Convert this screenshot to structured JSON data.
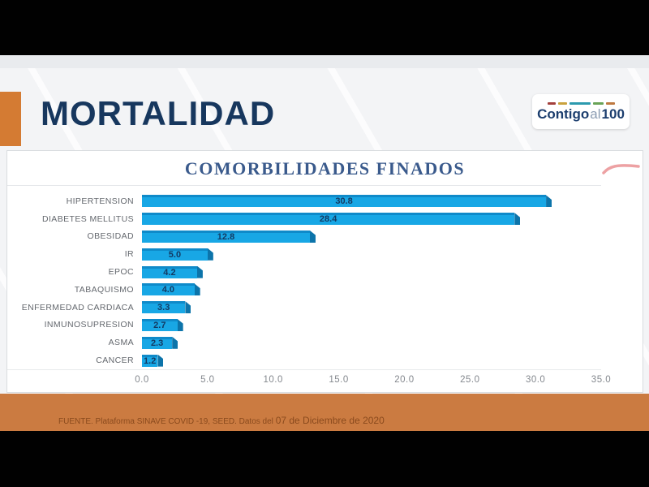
{
  "header": {
    "title": "MORTALIDAD",
    "logo": {
      "part1": "Contigo",
      "part2": "al",
      "part3": "100"
    }
  },
  "chart_data": {
    "type": "bar",
    "orientation": "horizontal",
    "title": "COMORBILIDADES FINADOS",
    "categories": [
      "HIPERTENSION",
      "DIABETES MELLITUS",
      "OBESIDAD",
      "IR",
      "EPOC",
      "TABAQUISMO",
      "ENFERMEDAD CARDIACA",
      "INMUNOSUPRESION",
      "ASMA",
      "CANCER"
    ],
    "values": [
      30.8,
      28.4,
      12.8,
      5.0,
      4.2,
      4.0,
      3.3,
      2.7,
      2.3,
      1.2
    ],
    "xlim": [
      0,
      35
    ],
    "x_ticks": [
      0,
      5,
      10,
      15,
      20,
      25,
      30,
      35
    ],
    "x_tick_labels": [
      "0.0",
      "5.0",
      "10.0",
      "15.0",
      "20.0",
      "25.0",
      "30.0",
      "35.0"
    ],
    "grid": false,
    "legend": false,
    "value_labels_shown": true,
    "bar_color": "#18a7e5",
    "bar_side_color": "#0c74aa",
    "bar_top_color": "#0f8ac9",
    "value_label_color": "#133a63"
  },
  "footer": {
    "source_text": "FUENTE. Plataforma SINAVE COVID -19, SEED. Datos del ",
    "date_text": "07 de Diciembre de 2020"
  },
  "colors": {
    "title_navy": "#17375e",
    "chart_title_blue": "#3a5a8c",
    "accent_orange": "#d47b33",
    "band_orange": "#cb7b41",
    "footer_text": "#8a4a1d",
    "swoosh_pink": "#ea9193",
    "logo_navy": "#1c3e6e",
    "logo_dash_colors": [
      "#a3403c",
      "#c9a23e",
      "#2c9aae",
      "#69a357",
      "#be7940"
    ]
  }
}
